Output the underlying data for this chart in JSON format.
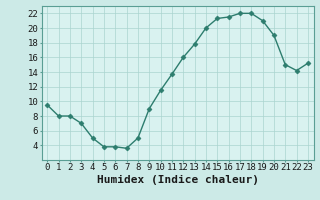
{
  "x": [
    0,
    1,
    2,
    3,
    4,
    5,
    6,
    7,
    8,
    9,
    10,
    11,
    12,
    13,
    14,
    15,
    16,
    17,
    18,
    19,
    20,
    21,
    22,
    23
  ],
  "y": [
    9.5,
    8,
    8,
    7,
    5,
    3.8,
    3.8,
    3.6,
    5,
    9,
    11.5,
    13.7,
    16,
    17.8,
    20,
    21.3,
    21.5,
    22,
    22,
    21,
    19,
    15,
    14.2,
    15.2
  ],
  "line_color": "#2d7d6e",
  "marker": "D",
  "marker_size": 2.5,
  "bg_color": "#cceae7",
  "plot_bg_color": "#d9f2f0",
  "grid_color": "#aad4d0",
  "spine_color": "#5a9e94",
  "xlabel": "Humidex (Indice chaleur)",
  "xlabel_fontsize": 8,
  "ylim": [
    2,
    23
  ],
  "xlim": [
    -0.5,
    23.5
  ],
  "yticks": [
    4,
    6,
    8,
    10,
    12,
    14,
    16,
    18,
    20,
    22
  ],
  "xticks": [
    0,
    1,
    2,
    3,
    4,
    5,
    6,
    7,
    8,
    9,
    10,
    11,
    12,
    13,
    14,
    15,
    16,
    17,
    18,
    19,
    20,
    21,
    22,
    23
  ],
  "tick_fontsize": 6.5,
  "line_width": 1.0
}
